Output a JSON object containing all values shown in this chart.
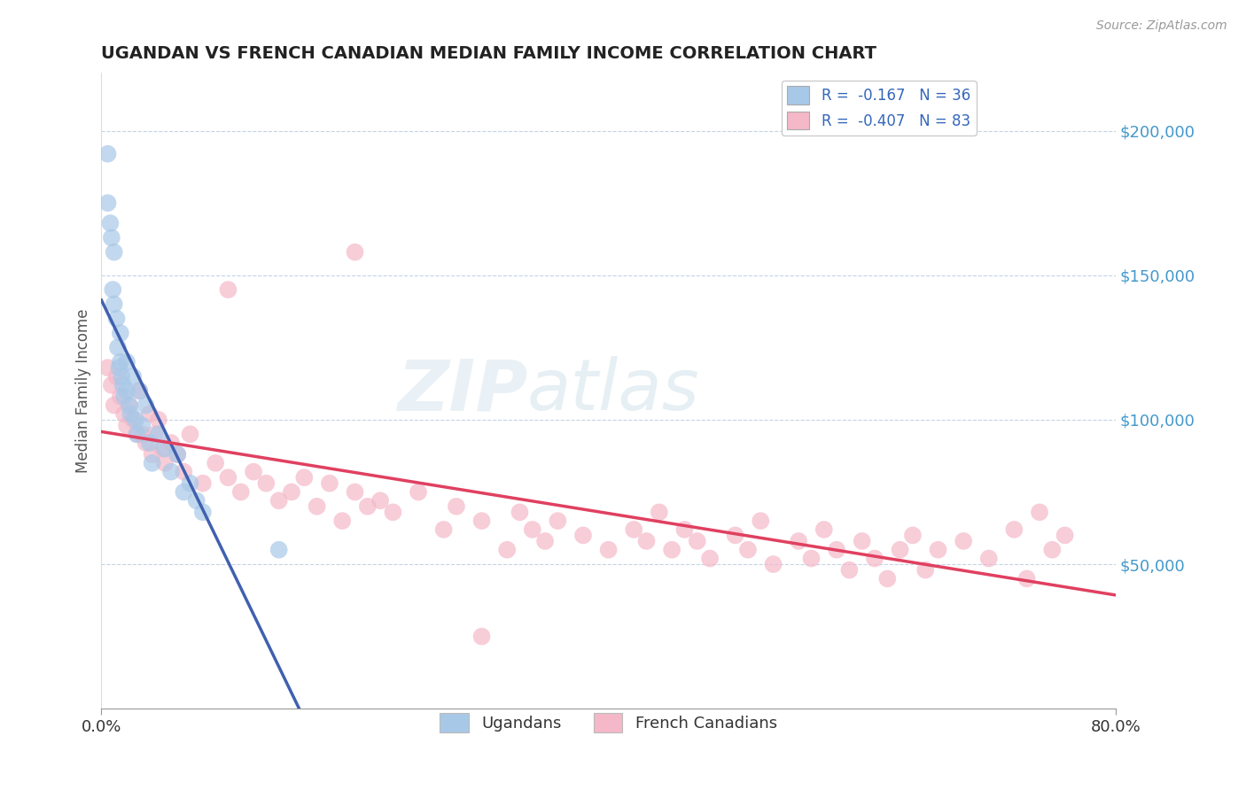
{
  "title": "UGANDAN VS FRENCH CANADIAN MEDIAN FAMILY INCOME CORRELATION CHART",
  "source_text": "Source: ZipAtlas.com",
  "ylabel": "Median Family Income",
  "xlim": [
    0.0,
    0.8
  ],
  "ylim": [
    0,
    220000
  ],
  "yticks": [
    50000,
    100000,
    150000,
    200000
  ],
  "ytick_labels": [
    "$50,000",
    "$100,000",
    "$150,000",
    "$200,000"
  ],
  "ugandan_color": "#a8c8e8",
  "french_color": "#f4b8c8",
  "trend_ugandan_color": "#4060b0",
  "trend_french_color": "#e04060",
  "trend_ugandan_dashed_color": "#90b8d8",
  "legend_r1": "R =  -0.167   N = 36",
  "legend_r2": "R =  -0.407   N = 83",
  "legend_label1": "Ugandans",
  "legend_label2": "French Canadians",
  "watermark_zip": "ZIP",
  "watermark_atlas": "atlas",
  "ugandan_R": -0.167,
  "ugandan_N": 36,
  "french_R": -0.407,
  "french_N": 83,
  "background_color": "#ffffff",
  "grid_color": "#c0d4e8",
  "title_color": "#222222",
  "axis_label_color": "#555555",
  "ytick_color": "#4499cc",
  "legend_text_color": "#3366bb",
  "ug_x": [
    0.005,
    0.005,
    0.007,
    0.008,
    0.009,
    0.01,
    0.01,
    0.012,
    0.013,
    0.014,
    0.015,
    0.015,
    0.016,
    0.017,
    0.018,
    0.02,
    0.02,
    0.022,
    0.023,
    0.025,
    0.027,
    0.028,
    0.03,
    0.032,
    0.035,
    0.038,
    0.04,
    0.045,
    0.05,
    0.055,
    0.06,
    0.065,
    0.07,
    0.075,
    0.08,
    0.14
  ],
  "ug_y": [
    192000,
    175000,
    168000,
    163000,
    145000,
    158000,
    140000,
    135000,
    125000,
    118000,
    130000,
    120000,
    115000,
    112000,
    108000,
    120000,
    110000,
    105000,
    102000,
    115000,
    100000,
    95000,
    110000,
    98000,
    105000,
    92000,
    85000,
    95000,
    90000,
    82000,
    88000,
    75000,
    78000,
    72000,
    68000,
    55000
  ],
  "fr_x": [
    0.005,
    0.008,
    0.01,
    0.012,
    0.015,
    0.018,
    0.02,
    0.022,
    0.025,
    0.028,
    0.03,
    0.032,
    0.035,
    0.038,
    0.04,
    0.042,
    0.045,
    0.048,
    0.05,
    0.055,
    0.06,
    0.065,
    0.07,
    0.08,
    0.09,
    0.1,
    0.11,
    0.12,
    0.13,
    0.14,
    0.15,
    0.16,
    0.17,
    0.18,
    0.19,
    0.2,
    0.21,
    0.22,
    0.23,
    0.25,
    0.27,
    0.28,
    0.3,
    0.32,
    0.33,
    0.34,
    0.35,
    0.36,
    0.38,
    0.4,
    0.42,
    0.43,
    0.44,
    0.45,
    0.46,
    0.47,
    0.48,
    0.5,
    0.51,
    0.52,
    0.53,
    0.55,
    0.56,
    0.57,
    0.58,
    0.59,
    0.6,
    0.61,
    0.62,
    0.63,
    0.64,
    0.65,
    0.66,
    0.68,
    0.7,
    0.72,
    0.73,
    0.74,
    0.75,
    0.76,
    0.2,
    0.3,
    0.1
  ],
  "fr_y": [
    118000,
    112000,
    105000,
    115000,
    108000,
    102000,
    98000,
    105000,
    100000,
    95000,
    110000,
    95000,
    92000,
    102000,
    88000,
    95000,
    100000,
    90000,
    85000,
    92000,
    88000,
    82000,
    95000,
    78000,
    85000,
    80000,
    75000,
    82000,
    78000,
    72000,
    75000,
    80000,
    70000,
    78000,
    65000,
    75000,
    70000,
    72000,
    68000,
    75000,
    62000,
    70000,
    65000,
    55000,
    68000,
    62000,
    58000,
    65000,
    60000,
    55000,
    62000,
    58000,
    68000,
    55000,
    62000,
    58000,
    52000,
    60000,
    55000,
    65000,
    50000,
    58000,
    52000,
    62000,
    55000,
    48000,
    58000,
    52000,
    45000,
    55000,
    60000,
    48000,
    55000,
    58000,
    52000,
    62000,
    45000,
    68000,
    55000,
    60000,
    158000,
    25000,
    145000
  ]
}
